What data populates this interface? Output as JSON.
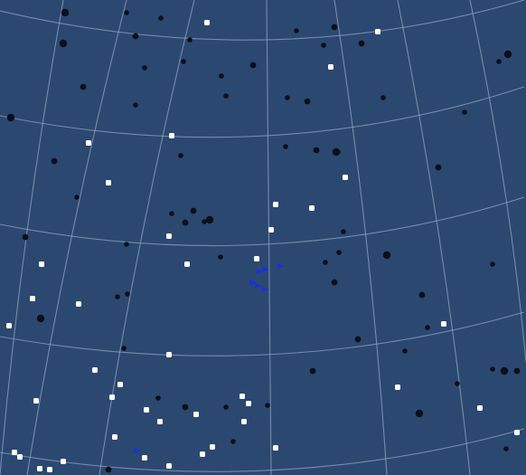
{
  "sky_map": {
    "background_color": "#2b4870",
    "grid_color": "#8fa3c0",
    "colors": {
      "white_star": "#ffffff",
      "dark_star": "#0b0f1a",
      "blue_marker": "#1a2fe0"
    }
  },
  "chart_data": {
    "type": "scatter",
    "grid": true,
    "series": [
      {
        "kind": "white_star",
        "points": [
          [
            229,
            25
          ],
          [
            418,
            35
          ],
          [
            366,
            74
          ],
          [
            98,
            158
          ],
          [
            190,
            150
          ],
          [
            382,
            196
          ],
          [
            120,
            202
          ],
          [
            305,
            226
          ],
          [
            345,
            230
          ],
          [
            300,
            254
          ],
          [
            187,
            261
          ],
          [
            284,
            286
          ],
          [
            207,
            292
          ],
          [
            46,
            292
          ],
          [
            36,
            330
          ],
          [
            87,
            336
          ],
          [
            10,
            360
          ],
          [
            491,
            358
          ],
          [
            187,
            392
          ],
          [
            105,
            409
          ],
          [
            133,
            425
          ],
          [
            40,
            443
          ],
          [
            124,
            439
          ],
          [
            440,
            428
          ],
          [
            268,
            438
          ],
          [
            275,
            446
          ],
          [
            162,
            453
          ],
          [
            531,
            451
          ],
          [
            217,
            458
          ],
          [
            270,
            466
          ],
          [
            177,
            466
          ],
          [
            127,
            483
          ],
          [
            572,
            478
          ],
          [
            235,
            494
          ],
          [
            224,
            502
          ],
          [
            305,
            495
          ],
          [
            160,
            506
          ],
          [
            187,
            515
          ],
          [
            16,
            500
          ],
          [
            22,
            505
          ],
          [
            44,
            518
          ],
          [
            55,
            519
          ],
          [
            70,
            510
          ]
        ]
      },
      {
        "kind": "dark_star",
        "points": [
          [
            72,
            14
          ],
          [
            140,
            14
          ],
          [
            178,
            20
          ],
          [
            150,
            40
          ],
          [
            210,
            44
          ],
          [
            328,
            34
          ],
          [
            370,
            30
          ],
          [
            70,
            48
          ],
          [
            358,
            50
          ],
          [
            400,
            48
          ],
          [
            203,
            68
          ],
          [
            160,
            75
          ],
          [
            280,
            72
          ],
          [
            552,
            68
          ],
          [
            562,
            60
          ],
          [
            92,
            96
          ],
          [
            245,
            84
          ],
          [
            318,
            108
          ],
          [
            340,
            112
          ],
          [
            424,
            108
          ],
          [
            514,
            124
          ],
          [
            12,
            130
          ],
          [
            150,
            116
          ],
          [
            250,
            106
          ],
          [
            60,
            178
          ],
          [
            200,
            172
          ],
          [
            316,
            162
          ],
          [
            350,
            166
          ],
          [
            372,
            168
          ],
          [
            374,
            168
          ],
          [
            485,
            185
          ],
          [
            85,
            218
          ],
          [
            190,
            236
          ],
          [
            214,
            233
          ],
          [
            226,
            245
          ],
          [
            232,
            243
          ],
          [
            205,
            246
          ],
          [
            380,
            256
          ],
          [
            375,
            279
          ],
          [
            28,
            262
          ],
          [
            140,
            270
          ],
          [
            244,
            284
          ],
          [
            428,
            282
          ],
          [
            360,
            290
          ],
          [
            545,
            292
          ],
          [
            370,
            312
          ],
          [
            130,
            328
          ],
          [
            141,
            325
          ],
          [
            467,
            326
          ],
          [
            45,
            352
          ],
          [
            473,
            362
          ],
          [
            396,
            375
          ],
          [
            137,
            385
          ],
          [
            448,
            388
          ],
          [
            346,
            410
          ],
          [
            545,
            408
          ],
          [
            558,
            410
          ],
          [
            572,
            410
          ],
          [
            506,
            424
          ],
          [
            175,
            440
          ],
          [
            205,
            450
          ],
          [
            250,
            450
          ],
          [
            296,
            448
          ],
          [
            464,
            457
          ],
          [
            258,
            488
          ],
          [
            560,
            496
          ],
          [
            120,
            519
          ]
        ]
      },
      {
        "kind": "blue_marker",
        "points": [
          [
            280,
            312
          ],
          [
            288,
            300
          ],
          [
            294,
            298
          ],
          [
            311,
            294
          ],
          [
            286,
            316
          ],
          [
            294,
            320
          ],
          [
            152,
            498
          ]
        ]
      }
    ]
  }
}
